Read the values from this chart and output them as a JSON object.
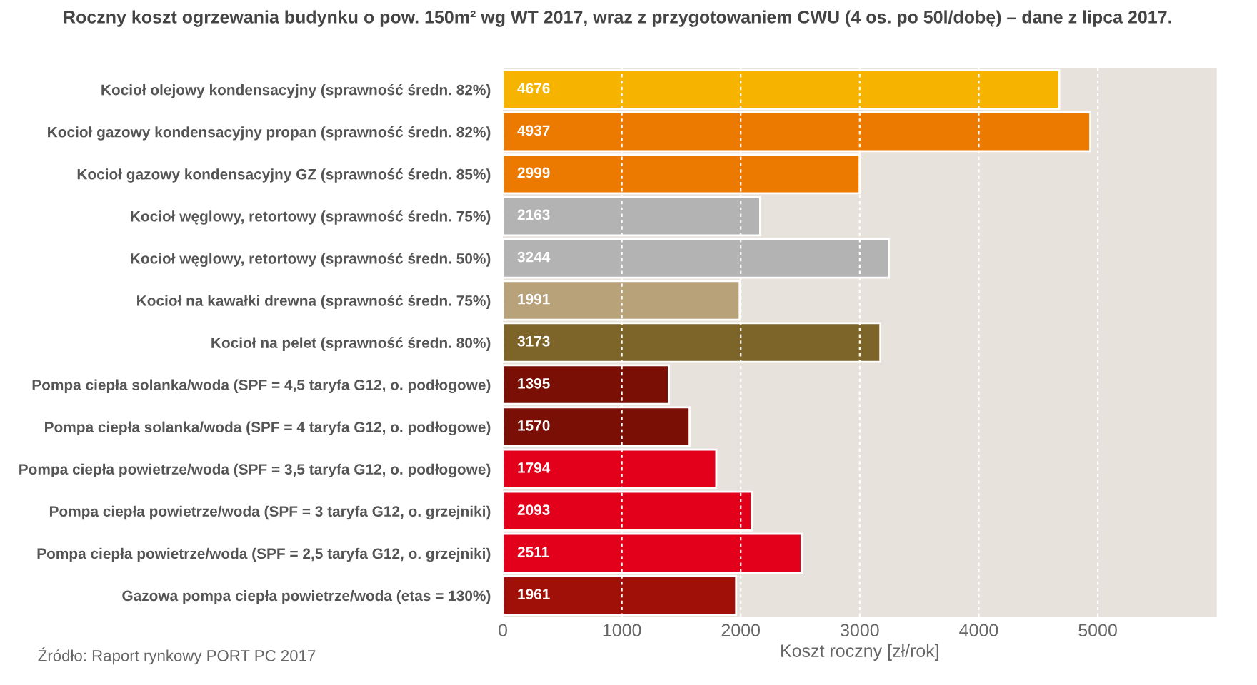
{
  "chart_data": {
    "type": "bar",
    "orientation": "horizontal",
    "title": "Roczny koszt ogrzewania budynku o pow. 150m² wg WT 2017, wraz z przygotowaniem CWU (4 os. po 50l/dobę) – dane z lipca 2017.",
    "categories": [
      "Kocioł olejowy kondensacyjny (sprawność średn. 82%)",
      "Kocioł gazowy kondensacyjny propan (sprawność średn. 82%)",
      "Kocioł gazowy kondensacyjny GZ (sprawność średn. 85%)",
      "Kocioł węglowy, retortowy (sprawność średn. 75%)",
      "Kocioł węglowy, retortowy (sprawność średn. 50%)",
      "Kocioł na kawałki drewna (sprawność średn. 75%)",
      "Kocioł na pelet (sprawność średn. 80%)",
      "Pompa ciepła solanka/woda (SPF = 4,5 taryfa G12, o. podłogowe)",
      "Pompa ciepła solanka/woda (SPF = 4 taryfa G12, o. podłogowe)",
      "Pompa ciepła powietrze/woda (SPF = 3,5 taryfa G12, o. podłogowe)",
      "Pompa ciepła powietrze/woda (SPF = 3 taryfa G12, o. grzejniki)",
      "Pompa ciepła powietrze/woda (SPF = 2,5 taryfa G12, o. grzejniki)",
      "Gazowa pompa ciepła powietrze/woda (etas = 130%)"
    ],
    "values": [
      4676,
      4937,
      2999,
      2163,
      3244,
      1991,
      3173,
      1395,
      1570,
      1794,
      2093,
      2511,
      1961
    ],
    "colors": [
      "#f6b400",
      "#ec7a00",
      "#ec7a00",
      "#b3b3b3",
      "#b3b3b3",
      "#b8a27a",
      "#7d6428",
      "#7a0f05",
      "#7a0f05",
      "#e2001a",
      "#e2001a",
      "#e2001a",
      "#a01008"
    ],
    "data_labels": true,
    "xlabel": "Koszt roczny [zł/rok]",
    "xlim": [
      0,
      6000
    ],
    "xticks": [
      0,
      1000,
      2000,
      3000,
      4000,
      5000
    ],
    "grid": "x",
    "annotations": [
      "Źródło: Raport rynkowy PORT PC 2017"
    ]
  }
}
